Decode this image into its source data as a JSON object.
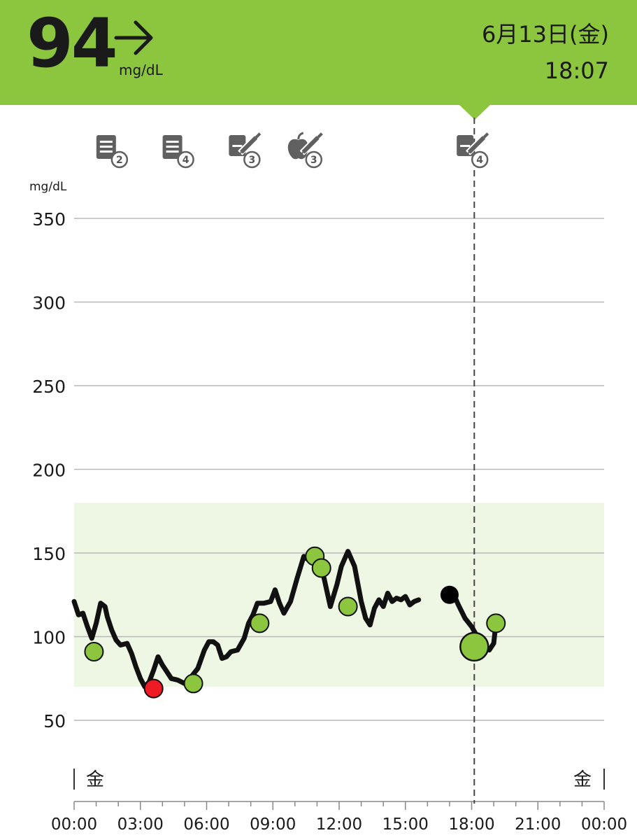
{
  "header": {
    "reading": "94",
    "unit": "mg/dL",
    "trend_icon": "arrow-right-icon",
    "date": "6月13日(金)",
    "time": "18:07",
    "background_color": "#8cc63f"
  },
  "events": [
    {
      "icon": "note-icon",
      "count": "2",
      "time": "01:48"
    },
    {
      "icon": "note-icon",
      "count": "4",
      "time": "04:48"
    },
    {
      "icon": "insulin-note-icon",
      "count": "3",
      "time": "07:48"
    },
    {
      "icon": "food-insulin-icon",
      "count": "3",
      "time": "10:36"
    },
    {
      "icon": "insulin-note-icon",
      "count": "4",
      "time": "18:07"
    }
  ],
  "chart_data": {
    "type": "line",
    "ylabel": "mg/dL",
    "yticks": [
      350,
      300,
      250,
      200,
      150,
      100,
      50
    ],
    "ylim": [
      20,
      370
    ],
    "xlim": [
      0,
      24
    ],
    "xtick_labels": [
      "00:00",
      "03:00",
      "06:00",
      "09:00",
      "12:00",
      "15:00",
      "18:00",
      "21:00",
      "00:00"
    ],
    "day_labels": {
      "left": "金",
      "right": "金"
    },
    "target_range": [
      70,
      180
    ],
    "target_color": "#eef6e4",
    "current_time": 18.12,
    "series": [
      {
        "x": [
          0.0,
          0.2,
          0.4,
          0.6,
          0.8,
          1.0,
          1.2,
          1.4,
          1.5,
          1.7,
          1.9,
          2.1,
          2.4,
          2.6,
          2.8,
          3.0,
          3.2,
          3.4,
          3.6,
          3.8,
          4.0,
          4.2,
          4.4,
          4.7,
          5.0,
          5.3,
          5.6,
          5.9,
          6.1,
          6.3,
          6.5,
          6.7,
          6.9,
          7.1,
          7.4,
          7.7,
          7.9,
          8.1,
          8.3,
          8.6,
          8.9,
          9.1,
          9.3,
          9.5,
          9.8,
          10.1,
          10.4,
          10.6,
          10.9,
          11.1,
          11.3,
          11.6,
          11.9,
          12.1,
          12.4,
          12.7,
          13.0,
          13.2,
          13.4,
          13.6,
          13.8,
          14.0,
          14.2,
          14.4,
          14.6,
          14.8,
          15.0,
          15.2,
          15.4,
          15.6
        ],
        "y": [
          121,
          113,
          114,
          106,
          99,
          108,
          120,
          118,
          112,
          104,
          98,
          95,
          96,
          90,
          82,
          75,
          70,
          73,
          80,
          88,
          83,
          79,
          75,
          74,
          72,
          76,
          81,
          92,
          97,
          97,
          95,
          87,
          88,
          91,
          92,
          99,
          108,
          113,
          120,
          120,
          121,
          128,
          120,
          114,
          121,
          135,
          148,
          146,
          149,
          151,
          136,
          118,
          131,
          142,
          151,
          142,
          121,
          111,
          107,
          117,
          122,
          118,
          126,
          121,
          123,
          122,
          124,
          119,
          121,
          122
        ]
      },
      {
        "x": [
          17.2,
          17.4,
          17.7,
          18.0,
          18.3,
          18.6,
          18.8,
          19.0,
          19.1
        ],
        "y": [
          125,
          119,
          111,
          106,
          99,
          94,
          92,
          96,
          108
        ]
      }
    ],
    "points": [
      {
        "x": 0.9,
        "y": 91,
        "color": "#8cc63f"
      },
      {
        "x": 3.6,
        "y": 69,
        "color": "#ed1c24"
      },
      {
        "x": 5.4,
        "y": 72,
        "color": "#8cc63f"
      },
      {
        "x": 8.4,
        "y": 108,
        "color": "#8cc63f"
      },
      {
        "x": 10.9,
        "y": 148,
        "color": "#8cc63f"
      },
      {
        "x": 11.2,
        "y": 141,
        "color": "#8cc63f"
      },
      {
        "x": 12.4,
        "y": 118,
        "color": "#8cc63f"
      },
      {
        "x": 19.1,
        "y": 108,
        "color": "#8cc63f"
      }
    ],
    "first_reading": {
      "x": 17.0,
      "y": 125,
      "color": "#000000"
    },
    "current_point": {
      "x": 18.12,
      "y": 94,
      "color": "#8cc63f"
    }
  }
}
